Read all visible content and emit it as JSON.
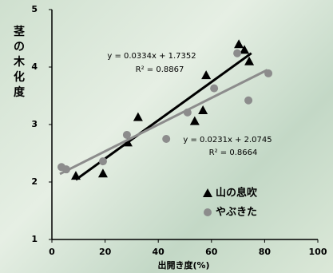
{
  "chart_data": {
    "type": "scatter",
    "y_label": "茎の木化度",
    "x_label": "出開き度(%)",
    "xlim": [
      0,
      100
    ],
    "xticks": [
      0,
      20,
      40,
      60,
      80,
      100
    ],
    "ylim": [
      1,
      5
    ],
    "yticks": [
      1,
      2,
      3,
      4,
      5
    ],
    "series": [
      {
        "name": "山の息吹",
        "color": "#000000",
        "marker": "triangle",
        "x": [
          9,
          19.2,
          28.5,
          32.4,
          53.7,
          56.8,
          58,
          70.3,
          72.4,
          74.2
        ],
        "values": [
          2.11,
          2.15,
          2.69,
          3.13,
          3.06,
          3.25,
          3.86,
          4.4,
          4.3,
          4.1
        ],
        "trendline": {
          "x": [
            9,
            75
          ],
          "y": [
            2.04,
            4.24
          ],
          "equation": "y = 0.0334x + 1.7352",
          "r2": "R² = 0.8867"
        }
      },
      {
        "name": "やぶきた",
        "color": "#8c8c8c",
        "marker": "circle",
        "x": [
          3.6,
          5.4,
          19.2,
          28.2,
          43,
          51,
          61,
          69.7,
          73.9,
          81.4
        ],
        "values": [
          2.26,
          2.22,
          2.36,
          2.82,
          2.75,
          3.21,
          3.63,
          4.24,
          3.42,
          3.89
        ],
        "trendline": {
          "x": [
            3,
            81
          ],
          "y": [
            2.14,
            3.95
          ],
          "equation": "y = 0.0231x + 2.0745",
          "r2": "R² = 0.8664"
        }
      }
    ]
  }
}
